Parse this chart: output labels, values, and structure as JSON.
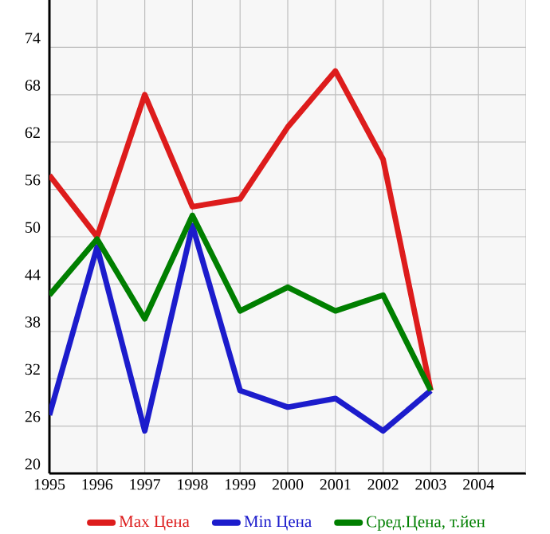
{
  "chart_data": {
    "type": "line",
    "x": [
      1995,
      1996,
      1997,
      1998,
      1999,
      2000,
      2001,
      2002,
      2003
    ],
    "series": [
      {
        "name": "Max Цена",
        "color": "#dd1c1c",
        "values": [
          57.8,
          50,
          68,
          53.8,
          54.8,
          63.9,
          71,
          59.8,
          30.5
        ]
      },
      {
        "name": "Min Цена",
        "color": "#1c1ccc",
        "values": [
          27.4,
          48.7,
          25.4,
          51.4,
          30.5,
          28.4,
          29.5,
          25.4,
          30.5
        ]
      },
      {
        "name": "Сред.Цена, т.йен",
        "color": "#007f00",
        "values": [
          42.6,
          49.7,
          39.6,
          52.7,
          40.6,
          43.6,
          40.6,
          42.6,
          30.5
        ]
      }
    ],
    "xlim": [
      1995,
      2005
    ],
    "xticks": [
      1995,
      1996,
      1997,
      1998,
      1999,
      2000,
      2001,
      2002,
      2003,
      2004
    ],
    "ylim": [
      20,
      80
    ],
    "yticks": [
      20,
      26,
      32,
      38,
      44,
      50,
      56,
      62,
      68,
      74
    ],
    "grid": true,
    "legend": "bottom",
    "marker": "none",
    "line_style": "solid"
  }
}
